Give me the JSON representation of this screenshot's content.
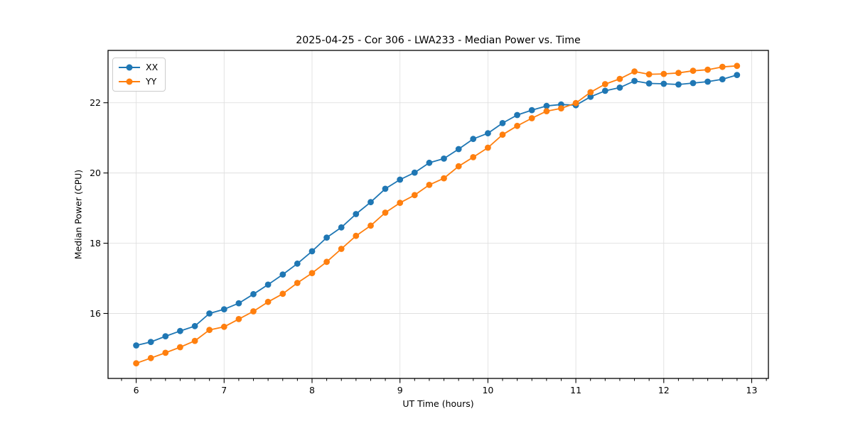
{
  "figure": {
    "background": "#ffffff",
    "axes_color": "#000000",
    "grid_color": "#e0e0e0"
  },
  "chart_data": {
    "type": "line",
    "title": "2025-04-25 - Cor 306 - LWA233 - Median Power vs. Time",
    "xlabel": "UT Time (hours)",
    "ylabel": "Median Power (CPU)",
    "xlim": [
      5.68,
      13.19
    ],
    "ylim": [
      14.15,
      23.49
    ],
    "x_major_ticks": [
      6,
      7,
      8,
      9,
      10,
      11,
      12,
      13
    ],
    "x_minor_tick_step": 0.166667,
    "y_major_ticks": [
      16,
      18,
      20,
      22
    ],
    "grid": true,
    "legend_position": "upper-left",
    "legend_entries": [
      "XX",
      "YY"
    ],
    "x": [
      6.0,
      6.167,
      6.333,
      6.5,
      6.667,
      6.833,
      7.0,
      7.167,
      7.333,
      7.5,
      7.667,
      7.833,
      8.0,
      8.167,
      8.333,
      8.5,
      8.667,
      8.833,
      9.0,
      9.167,
      9.333,
      9.5,
      9.667,
      9.833,
      10.0,
      10.167,
      10.333,
      10.5,
      10.667,
      10.833,
      11.0,
      11.167,
      11.333,
      11.5,
      11.667,
      11.833,
      12.0,
      12.167,
      12.333,
      12.5,
      12.667,
      12.833
    ],
    "series": [
      {
        "name": "XX",
        "color": "#1f77b4",
        "values": [
          15.09,
          15.19,
          15.35,
          15.5,
          15.64,
          16.0,
          16.12,
          16.29,
          16.55,
          16.82,
          17.11,
          17.42,
          17.77,
          18.16,
          18.45,
          18.83,
          19.17,
          19.55,
          19.81,
          20.01,
          20.29,
          20.41,
          20.68,
          20.97,
          21.13,
          21.42,
          21.65,
          21.79,
          21.91,
          21.95,
          21.93,
          22.17,
          22.34,
          22.43,
          22.62,
          22.55,
          22.54,
          22.52,
          22.56,
          22.6,
          22.67,
          22.79
        ]
      },
      {
        "name": "YY",
        "color": "#ff7f0e",
        "values": [
          14.58,
          14.73,
          14.88,
          15.04,
          15.22,
          15.53,
          15.62,
          15.84,
          16.06,
          16.33,
          16.56,
          16.87,
          17.15,
          17.47,
          17.84,
          18.21,
          18.5,
          18.87,
          19.15,
          19.37,
          19.66,
          19.85,
          20.19,
          20.45,
          20.72,
          21.09,
          21.34,
          21.56,
          21.76,
          21.84,
          21.99,
          22.3,
          22.53,
          22.68,
          22.89,
          22.81,
          22.82,
          22.85,
          22.91,
          22.94,
          23.02,
          23.05
        ]
      }
    ]
  }
}
